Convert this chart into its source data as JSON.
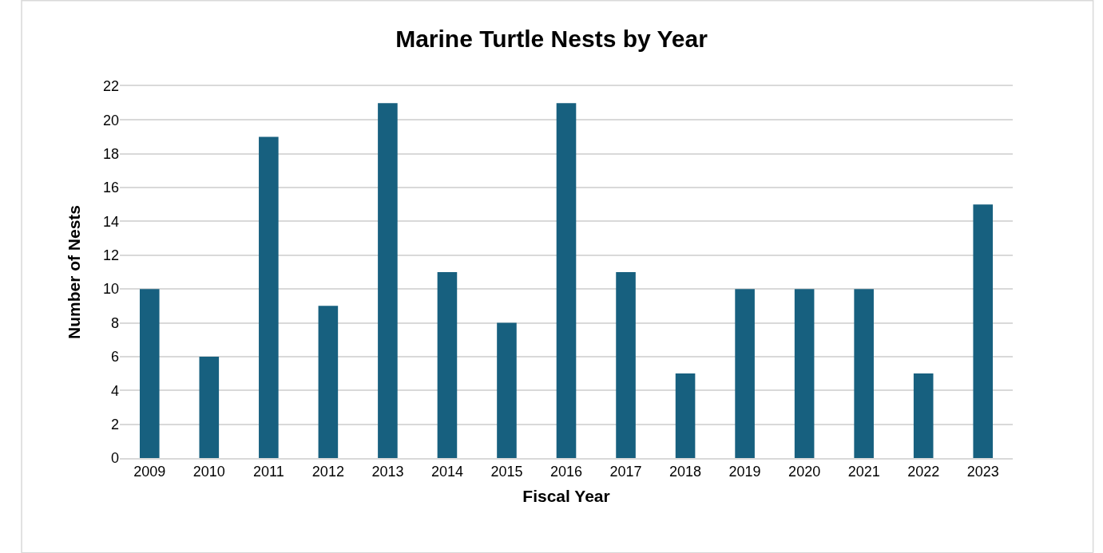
{
  "chart_data": {
    "type": "bar",
    "title": "Marine Turtle Nests by Year",
    "xlabel": "Fiscal Year",
    "ylabel": "Number of Nests",
    "categories": [
      "2009",
      "2010",
      "2011",
      "2012",
      "2013",
      "2014",
      "2015",
      "2016",
      "2017",
      "2018",
      "2019",
      "2020",
      "2021",
      "2022",
      "2023"
    ],
    "values": [
      10,
      6,
      19,
      9,
      21,
      11,
      8,
      21,
      11,
      5,
      10,
      10,
      10,
      5,
      15
    ],
    "color": "#17607f",
    "ylim": [
      0,
      22
    ],
    "yticks": [
      0,
      2,
      4,
      6,
      8,
      10,
      12,
      14,
      16,
      18,
      20,
      22
    ],
    "grid": "y"
  }
}
